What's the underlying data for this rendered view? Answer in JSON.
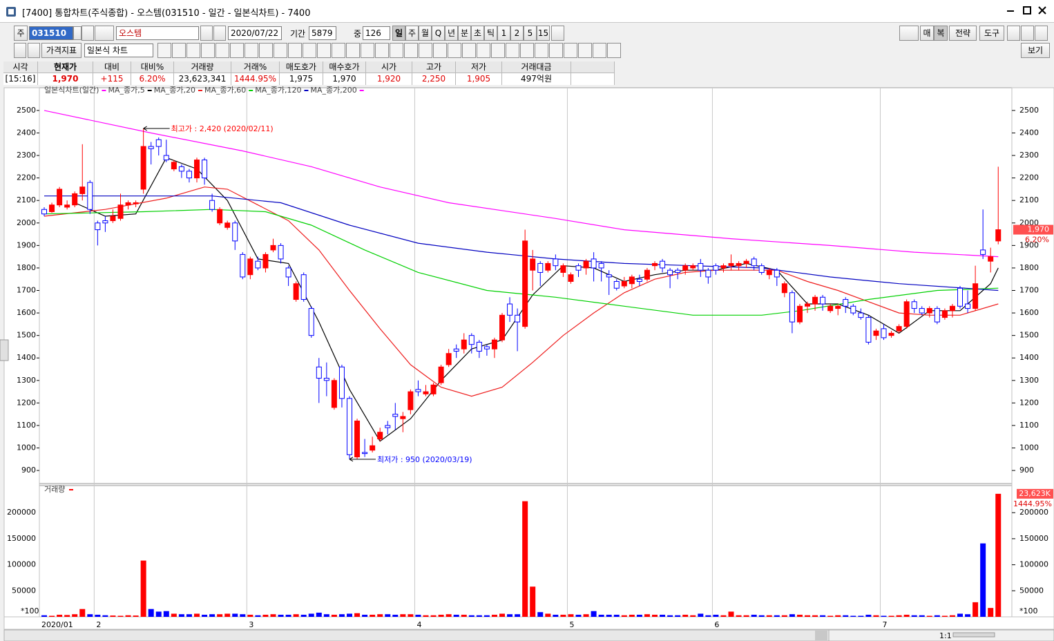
{
  "window": {
    "title": "[7400] 통합차트(주식종합) - 오스템(031510 - 일간 - 일본식차트) - 7400"
  },
  "toolbar": {
    "market": "주",
    "code": "031510",
    "name": "오스템",
    "date": "2020/07/22",
    "period_label": "기간",
    "period": "5879",
    "count_label": "중",
    "count": "126",
    "intervals": [
      "일",
      "주",
      "월",
      "Q",
      "년",
      "분",
      "초",
      "틱",
      "1",
      "2",
      "5",
      "15"
    ],
    "right_buttons": [
      "매",
      "복",
      "전략",
      "도구"
    ],
    "indicator": "가격지표",
    "chart_style": "일본식 차트",
    "view": "보기"
  },
  "quote": {
    "headers": [
      "시각",
      "현재가",
      "대비",
      "대비%",
      "거래량",
      "거래%",
      "매도호가",
      "매수호가",
      "시가",
      "고가",
      "저가",
      "거래대금"
    ],
    "values": [
      "[15:16]",
      "1,970",
      "+115",
      "6.20%",
      "23,623,341",
      "1444.95%",
      "1,975",
      "1,970",
      "1,920",
      "2,250",
      "1,905",
      "497억원"
    ]
  },
  "chart_data": [
    {
      "type": "candlestick",
      "title": "일본식차트(일간)",
      "categories": [
        "2020/01",
        null,
        null,
        null,
        null,
        null,
        null,
        "2",
        null,
        null,
        null,
        null,
        null,
        null,
        null,
        null,
        null,
        null,
        null,
        null,
        null,
        null,
        null,
        null,
        null,
        null,
        null,
        "3",
        null,
        null,
        null,
        null,
        null,
        null,
        null,
        null,
        null,
        null,
        null,
        null,
        null,
        null,
        null,
        null,
        null,
        null,
        null,
        null,
        null,
        "4",
        null,
        null,
        null,
        null,
        null,
        null,
        null,
        null,
        null,
        null,
        null,
        null,
        null,
        null,
        null,
        null,
        null,
        null,
        null,
        "5",
        null,
        null,
        null,
        null,
        null,
        null,
        null,
        null,
        null,
        null,
        null,
        null,
        null,
        null,
        null,
        null,
        null,
        null,
        "6",
        null,
        null,
        null,
        null,
        null,
        null,
        null,
        null,
        null,
        null,
        null,
        null,
        null,
        null,
        null,
        null,
        null,
        null,
        null,
        null,
        null,
        "7",
        null,
        null,
        null,
        null,
        null,
        null,
        null,
        null,
        null,
        null,
        null,
        null,
        null,
        null,
        null
      ],
      "open": [
        2060,
        2050,
        2080,
        2070,
        2080,
        2130,
        2180,
        2000,
        2010,
        2010,
        2020,
        2080,
        2085,
        2150,
        2340,
        2370,
        2300,
        2240,
        2250,
        2230,
        2200,
        2280,
        2100,
        2000,
        1980,
        2000,
        1860,
        1770,
        1830,
        1800,
        1880,
        1900,
        1800,
        1660,
        1770,
        1620,
        1360,
        1310,
        1180,
        1360,
        1220,
        960,
        980,
        990,
        1040,
        1100,
        1150,
        1130,
        1170,
        1260,
        1240,
        1240,
        1290,
        1370,
        1440,
        1440,
        1500,
        1470,
        1450,
        1440,
        1480,
        1640,
        1590,
        1540,
        1790,
        1820,
        1790,
        1840,
        1780,
        1740,
        1810,
        1800,
        1840,
        1820,
        1770,
        1740,
        1720,
        1730,
        1750,
        1750,
        1810,
        1830,
        1790,
        1790,
        1790,
        1800,
        1820,
        1790,
        1810,
        1800,
        1810,
        1810,
        1820,
        1840,
        1810,
        1770,
        1790,
        1690,
        1690,
        1560,
        1630,
        1640,
        1670,
        1610,
        1620,
        1660,
        1630,
        1600,
        1580,
        1500,
        1530,
        1500,
        1520,
        1540,
        1650,
        1620,
        1600,
        1620,
        1580,
        1610,
        1710,
        1640,
        1620,
        1880,
        1830,
        1920
      ],
      "high": [
        2070,
        2090,
        2160,
        2100,
        2140,
        2350,
        2190,
        2010,
        2030,
        2060,
        2130,
        2100,
        2100,
        2420,
        2360,
        2380,
        2370,
        2280,
        2260,
        2240,
        2290,
        2290,
        2130,
        2070,
        2010,
        2010,
        1870,
        1850,
        1850,
        1870,
        1930,
        1910,
        1810,
        1740,
        1780,
        1630,
        1400,
        1380,
        1310,
        1370,
        1230,
        1130,
        1040,
        1050,
        1090,
        1120,
        1200,
        1160,
        1260,
        1300,
        1280,
        1290,
        1370,
        1440,
        1460,
        1510,
        1510,
        1480,
        1460,
        1490,
        1600,
        1670,
        1620,
        1970,
        1880,
        1830,
        1830,
        1860,
        1820,
        1780,
        1820,
        1840,
        1870,
        1830,
        1790,
        1750,
        1760,
        1770,
        1770,
        1800,
        1830,
        1840,
        1800,
        1800,
        1820,
        1820,
        1840,
        1800,
        1820,
        1820,
        1860,
        1830,
        1840,
        1850,
        1820,
        1800,
        1800,
        1740,
        1700,
        1640,
        1650,
        1680,
        1680,
        1640,
        1640,
        1670,
        1640,
        1620,
        1590,
        1530,
        1550,
        1520,
        1550,
        1660,
        1660,
        1630,
        1630,
        1630,
        1620,
        1640,
        1720,
        1700,
        1810,
        2060,
        1890,
        2250
      ],
      "low": [
        2030,
        2045,
        2070,
        2060,
        2070,
        2100,
        2040,
        1900,
        1960,
        2000,
        2010,
        2060,
        2070,
        2130,
        2260,
        2300,
        2270,
        2230,
        2200,
        2180,
        2180,
        2170,
        2050,
        1990,
        1970,
        1880,
        1750,
        1750,
        1790,
        1780,
        1870,
        1820,
        1720,
        1650,
        1650,
        1490,
        1200,
        1230,
        1170,
        1180,
        950,
        950,
        960,
        980,
        1030,
        1060,
        1080,
        1070,
        1150,
        1230,
        1230,
        1230,
        1280,
        1360,
        1400,
        1420,
        1420,
        1400,
        1410,
        1400,
        1470,
        1560,
        1430,
        1530,
        1700,
        1720,
        1780,
        1790,
        1760,
        1730,
        1760,
        1770,
        1740,
        1740,
        1680,
        1700,
        1710,
        1710,
        1720,
        1740,
        1790,
        1780,
        1710,
        1750,
        1770,
        1790,
        1760,
        1730,
        1770,
        1780,
        1790,
        1790,
        1800,
        1790,
        1770,
        1750,
        1720,
        1670,
        1510,
        1550,
        1600,
        1610,
        1610,
        1600,
        1590,
        1600,
        1590,
        1570,
        1460,
        1480,
        1480,
        1490,
        1510,
        1530,
        1600,
        1590,
        1580,
        1550,
        1570,
        1580,
        1620,
        1600,
        1610,
        1840,
        1780,
        1905
      ],
      "close": [
        2040,
        2080,
        2150,
        2080,
        2130,
        2160,
        2060,
        1970,
        2000,
        2030,
        2080,
        2090,
        2090,
        2340,
        2330,
        2340,
        2280,
        2270,
        2230,
        2200,
        2280,
        2200,
        2060,
        2060,
        2000,
        1920,
        1760,
        1840,
        1800,
        1860,
        1900,
        1840,
        1760,
        1730,
        1660,
        1500,
        1310,
        1300,
        1300,
        1220,
        970,
        1120,
        975,
        1010,
        1070,
        1090,
        1140,
        1140,
        1250,
        1250,
        1250,
        1280,
        1360,
        1420,
        1430,
        1480,
        1460,
        1430,
        1440,
        1480,
        1590,
        1590,
        1560,
        1920,
        1840,
        1780,
        1820,
        1810,
        1810,
        1770,
        1790,
        1830,
        1800,
        1800,
        1760,
        1710,
        1740,
        1760,
        1740,
        1790,
        1820,
        1800,
        1770,
        1780,
        1810,
        1810,
        1790,
        1760,
        1790,
        1810,
        1820,
        1820,
        1830,
        1810,
        1780,
        1790,
        1760,
        1730,
        1560,
        1630,
        1640,
        1670,
        1640,
        1630,
        1630,
        1630,
        1600,
        1580,
        1470,
        1520,
        1490,
        1510,
        1540,
        1650,
        1620,
        1600,
        1620,
        1560,
        1610,
        1630,
        1630,
        1620,
        1730,
        1860,
        1850,
        1970
      ],
      "up_color": "#ff0000",
      "down_color": "#0000ff",
      "ylim": [
        842,
        2601
      ],
      "yticks": [
        900,
        1000,
        1100,
        1200,
        1300,
        1400,
        1500,
        1600,
        1700,
        1800,
        1900,
        2000,
        2100,
        2200,
        2300,
        2400,
        2500
      ],
      "grid": true,
      "series": [
        {
          "name": "MA_종가,5",
          "color": "#000000",
          "x": [
            4,
            8,
            12,
            16,
            20,
            24,
            28,
            32,
            36,
            40,
            44,
            48,
            52,
            56,
            60,
            64,
            68,
            72,
            76,
            80,
            84,
            88,
            92,
            96,
            100,
            104,
            108,
            112,
            116,
            120,
            124,
            125
          ],
          "values": [
            2090,
            2030,
            2040,
            2290,
            2240,
            2100,
            1840,
            1820,
            1560,
            1260,
            1030,
            1130,
            1300,
            1440,
            1480,
            1680,
            1810,
            1800,
            1740,
            1770,
            1790,
            1790,
            1820,
            1790,
            1640,
            1640,
            1590,
            1510,
            1610,
            1610,
            1730,
            1800
          ]
        },
        {
          "name": "MA_종가,20",
          "color": "#ee1c1c",
          "x": [
            0,
            8,
            16,
            21,
            24,
            28,
            32,
            36,
            40,
            44,
            48,
            52,
            56,
            60,
            64,
            68,
            72,
            76,
            80,
            84,
            88,
            92,
            96,
            100,
            104,
            108,
            112,
            116,
            120,
            125
          ],
          "values": [
            2030,
            2060,
            2110,
            2160,
            2150,
            2080,
            2010,
            1880,
            1700,
            1530,
            1370,
            1270,
            1230,
            1270,
            1380,
            1500,
            1600,
            1690,
            1750,
            1780,
            1790,
            1790,
            1790,
            1740,
            1700,
            1650,
            1600,
            1590,
            1590,
            1640
          ]
        },
        {
          "name": "MA_종가,60",
          "color": "#00d000",
          "x": [
            0,
            13,
            22,
            29,
            35,
            42,
            49,
            58,
            67,
            76,
            85,
            94,
            99,
            108,
            117,
            125
          ],
          "values": [
            2040,
            2050,
            2060,
            2050,
            1990,
            1880,
            1780,
            1700,
            1670,
            1630,
            1590,
            1590,
            1610,
            1660,
            1700,
            1710
          ]
        },
        {
          "name": "MA_종가,120",
          "color": "#0000c0",
          "x": [
            0,
            22,
            31,
            40,
            49,
            58,
            67,
            76,
            85,
            94,
            103,
            112,
            125
          ],
          "values": [
            2120,
            2120,
            2090,
            1990,
            1910,
            1870,
            1840,
            1820,
            1810,
            1800,
            1760,
            1730,
            1700
          ]
        },
        {
          "name": "MA_종가,200",
          "color": "#ff00ff",
          "x": [
            0,
            14,
            26,
            35,
            44,
            53,
            67,
            76,
            90,
            103,
            114,
            125
          ],
          "values": [
            2500,
            2400,
            2320,
            2250,
            2160,
            2090,
            2020,
            1970,
            1930,
            1900,
            1870,
            1850
          ]
        }
      ],
      "annotations": [
        {
          "text": "최고가 : 2,420 (2020/02/11)",
          "x": 13,
          "y": 2420,
          "color": "#ff0000"
        },
        {
          "text": "최저가 : 950 (2020/03/19)",
          "x": 40,
          "y": 950,
          "color": "#0000ff"
        }
      ],
      "current_price": "1,970",
      "current_change": "6.20%"
    },
    {
      "type": "bar",
      "title": "거래량",
      "unit_label": "*100",
      "values": [
        3000,
        2000,
        4000,
        3500,
        5000,
        15000,
        5000,
        4000,
        3000,
        2500,
        2000,
        3000,
        2500,
        108000,
        15000,
        10000,
        11000,
        6000,
        5000,
        5000,
        6000,
        4000,
        5000,
        5000,
        6000,
        6000,
        5000,
        4000,
        3000,
        4000,
        5000,
        4000,
        4000,
        5000,
        4000,
        6000,
        8000,
        5000,
        4000,
        5000,
        6000,
        7000,
        4000,
        4000,
        5000,
        5000,
        4000,
        5000,
        5000,
        4000,
        3000,
        3000,
        4000,
        5000,
        4000,
        4000,
        3000,
        3000,
        3000,
        4000,
        6000,
        5000,
        5000,
        222000,
        58000,
        9000,
        6000,
        4000,
        4000,
        5000,
        4000,
        5000,
        11000,
        4000,
        4000,
        4000,
        3000,
        4000,
        4000,
        5000,
        4000,
        4000,
        3000,
        3000,
        4000,
        3000,
        6000,
        3000,
        4000,
        3000,
        10000,
        3000,
        3000,
        4000,
        3000,
        3000,
        3000,
        3000,
        5000,
        4000,
        3000,
        3000,
        3000,
        2000,
        3000,
        3000,
        2000,
        2000,
        4000,
        3000,
        2000,
        2000,
        3000,
        4000,
        3000,
        3000,
        2000,
        3000,
        2000,
        3000,
        6000,
        5000,
        28000,
        141000,
        17000,
        236233
      ],
      "ylim": [
        0,
        252000
      ],
      "yticks": [
        50000,
        100000,
        150000,
        200000
      ],
      "current_label": "23,623K",
      "current_change": "1444.95%"
    }
  ],
  "footer": {
    "zoom": "1:1"
  }
}
